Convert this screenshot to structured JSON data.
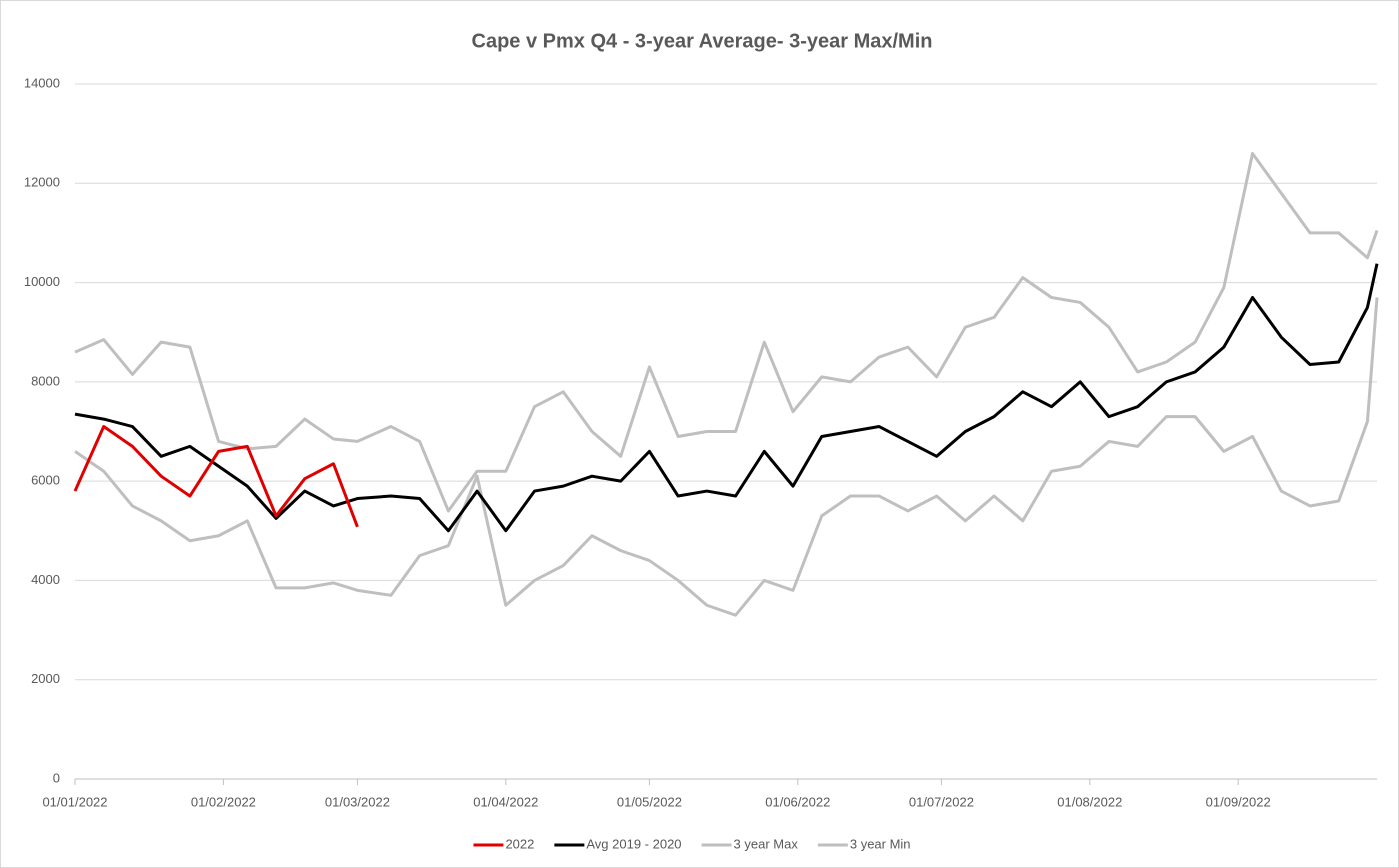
{
  "chart_data": {
    "type": "line",
    "title": "Cape v Pmx Q4  - 3-year Average-  3-year Max/Min",
    "x": [
      "01/01/2022",
      "07/01/2022",
      "13/01/2022",
      "19/01/2022",
      "25/01/2022",
      "31/01/2022",
      "06/02/2022",
      "12/02/2022",
      "18/02/2022",
      "24/02/2022",
      "01/03/2022",
      "08/03/2022",
      "14/03/2022",
      "20/03/2022",
      "26/03/2022",
      "01/04/2022",
      "07/04/2022",
      "13/04/2022",
      "19/04/2022",
      "25/04/2022",
      "01/05/2022",
      "07/05/2022",
      "13/05/2022",
      "19/05/2022",
      "25/05/2022",
      "31/05/2022",
      "06/06/2022",
      "12/06/2022",
      "18/06/2022",
      "24/06/2022",
      "30/06/2022",
      "06/07/2022",
      "12/07/2022",
      "18/07/2022",
      "24/07/2022",
      "30/07/2022",
      "05/08/2022",
      "11/08/2022",
      "17/08/2022",
      "23/08/2022",
      "29/08/2022",
      "04/09/2022",
      "10/09/2022",
      "16/09/2022",
      "22/09/2022",
      "28/09/2022",
      "30/09/2022"
    ],
    "series": [
      {
        "name": "2022",
        "color": "#e00000",
        "values": [
          5800,
          7100,
          6700,
          6100,
          5700,
          6600,
          6700,
          5300,
          6050,
          6350,
          5080,
          null,
          null,
          null,
          null,
          null,
          null,
          null,
          null,
          null,
          null,
          null,
          null,
          null,
          null,
          null,
          null,
          null,
          null,
          null,
          null,
          null,
          null,
          null,
          null,
          null,
          null,
          null,
          null,
          null,
          null,
          null,
          null,
          null,
          null,
          null,
          null
        ]
      },
      {
        "name": "Avg 2019 - 2020",
        "color": "#000000",
        "values": [
          7350,
          7250,
          7100,
          6500,
          6700,
          6300,
          5900,
          5250,
          5800,
          5500,
          5650,
          5700,
          5650,
          5000,
          5800,
          5000,
          5800,
          5900,
          6100,
          6000,
          6600,
          5700,
          5800,
          5700,
          6600,
          5900,
          6900,
          7000,
          7100,
          6800,
          6500,
          7000,
          7300,
          7800,
          7500,
          8000,
          7300,
          7500,
          8000,
          8200,
          8700,
          9700,
          8900,
          8350,
          8400,
          9500,
          10380
        ]
      },
      {
        "name": "3 year Max",
        "color": "#bfbfbf",
        "values": [
          8600,
          8850,
          8150,
          8800,
          8700,
          6800,
          6650,
          6700,
          7250,
          6850,
          6800,
          7100,
          6800,
          5400,
          6200,
          6200,
          7500,
          7800,
          7000,
          6500,
          8300,
          6900,
          7000,
          7000,
          8800,
          7400,
          8100,
          8000,
          8500,
          8700,
          8100,
          9100,
          9300,
          10100,
          9700,
          9600,
          9100,
          8200,
          8400,
          8800,
          9900,
          12600,
          11800,
          11000,
          11000,
          10500,
          11050
        ]
      },
      {
        "name": "3 year Min",
        "color": "#bfbfbf",
        "values": [
          6600,
          6200,
          5500,
          5200,
          4800,
          4900,
          5200,
          3850,
          3850,
          3950,
          3800,
          3700,
          4500,
          4700,
          6100,
          3500,
          4000,
          4300,
          4900,
          4600,
          4400,
          4000,
          3500,
          3300,
          4000,
          3800,
          5300,
          5700,
          5700,
          5400,
          5700,
          5200,
          5700,
          5200,
          6200,
          6300,
          6800,
          6700,
          7300,
          7300,
          6600,
          6900,
          5800,
          5500,
          5600,
          7200,
          9700
        ]
      }
    ],
    "xlim": [
      "01/01/2022",
      "30/09/2022"
    ],
    "xticks": [
      "01/01/2022",
      "01/02/2022",
      "01/03/2022",
      "01/04/2022",
      "01/05/2022",
      "01/06/2022",
      "01/07/2022",
      "01/08/2022",
      "01/09/2022"
    ],
    "ylim": [
      0,
      14000
    ],
    "yticks": [
      0,
      2000,
      4000,
      6000,
      8000,
      10000,
      12000,
      14000
    ],
    "grid": true,
    "legend": "bottom"
  }
}
